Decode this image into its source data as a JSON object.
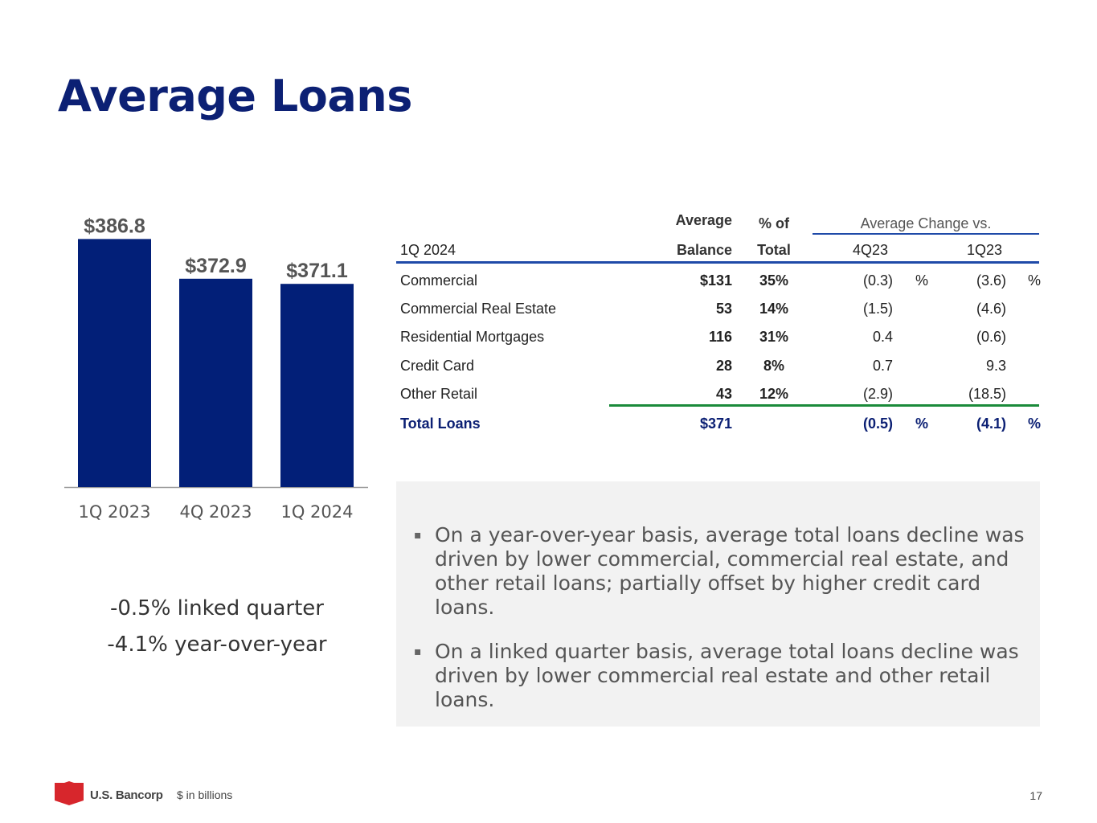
{
  "title": "Average Loans",
  "chart_data": {
    "type": "bar",
    "categories": [
      "1Q 2023",
      "4Q 2023",
      "1Q 2024"
    ],
    "values": [
      386.8,
      372.9,
      371.1
    ],
    "data_labels": [
      "$386.8",
      "$372.9",
      "$371.1"
    ],
    "title": "",
    "xlabel": "",
    "ylabel": "",
    "ylim": [
      300,
      390
    ],
    "bar_color": "#021f78",
    "grid": false,
    "legend": "none"
  },
  "summary": {
    "linked_quarter": "-0.5% linked quarter",
    "year_over_year": "-4.1% year-over-year"
  },
  "table": {
    "header_top": {
      "average": "Average",
      "pct_of": "% of",
      "change_vs": "Average Change vs."
    },
    "header_bottom": {
      "period": "1Q 2024",
      "balance": "Balance",
      "total": "Total",
      "q4": "4Q23",
      "q1": "1Q23"
    },
    "rows": [
      {
        "label": "Commercial",
        "balance": "$131",
        "pct": "35%",
        "chg_4q": "(0.3)",
        "sym_4q": "%",
        "chg_1q": "(3.6)",
        "sym_1q": "%"
      },
      {
        "label": "Commercial Real Estate",
        "balance": "53",
        "pct": "14%",
        "chg_4q": "(1.5)",
        "sym_4q": "",
        "chg_1q": "(4.6)",
        "sym_1q": ""
      },
      {
        "label": "Residential Mortgages",
        "balance": "116",
        "pct": "31%",
        "chg_4q": "0.4",
        "sym_4q": "",
        "chg_1q": "(0.6)",
        "sym_1q": ""
      },
      {
        "label": "Credit Card",
        "balance": "28",
        "pct": "8%",
        "chg_4q": "0.7",
        "sym_4q": "",
        "chg_1q": "9.3",
        "sym_1q": ""
      },
      {
        "label": "Other Retail",
        "balance": "43",
        "pct": "12%",
        "chg_4q": "(2.9)",
        "sym_4q": "",
        "chg_1q": "(18.5)",
        "sym_1q": ""
      }
    ],
    "total_row": {
      "label": "Total Loans",
      "balance": "$371",
      "pct": "",
      "chg_4q": "(0.5)",
      "sym_4q": "%",
      "chg_1q": "(4.1)",
      "sym_1q": "%"
    },
    "colors": {
      "header_rule": "#1f4aa8",
      "total_rule": "#1a8a3a",
      "total_text": "#0c2074"
    }
  },
  "notes": [
    "On a year-over-year basis, average total loans decline was driven by lower commercial, commercial real estate, and other retail loans; partially offset by higher credit card loans.",
    "On a linked quarter basis, average total loans decline was driven by lower commercial real estate and other retail loans."
  ],
  "footer": {
    "logo_text": "U.S. Bancorp",
    "footnote": "$ in billions",
    "page_number": "17",
    "logo_color": "#d7262c"
  }
}
